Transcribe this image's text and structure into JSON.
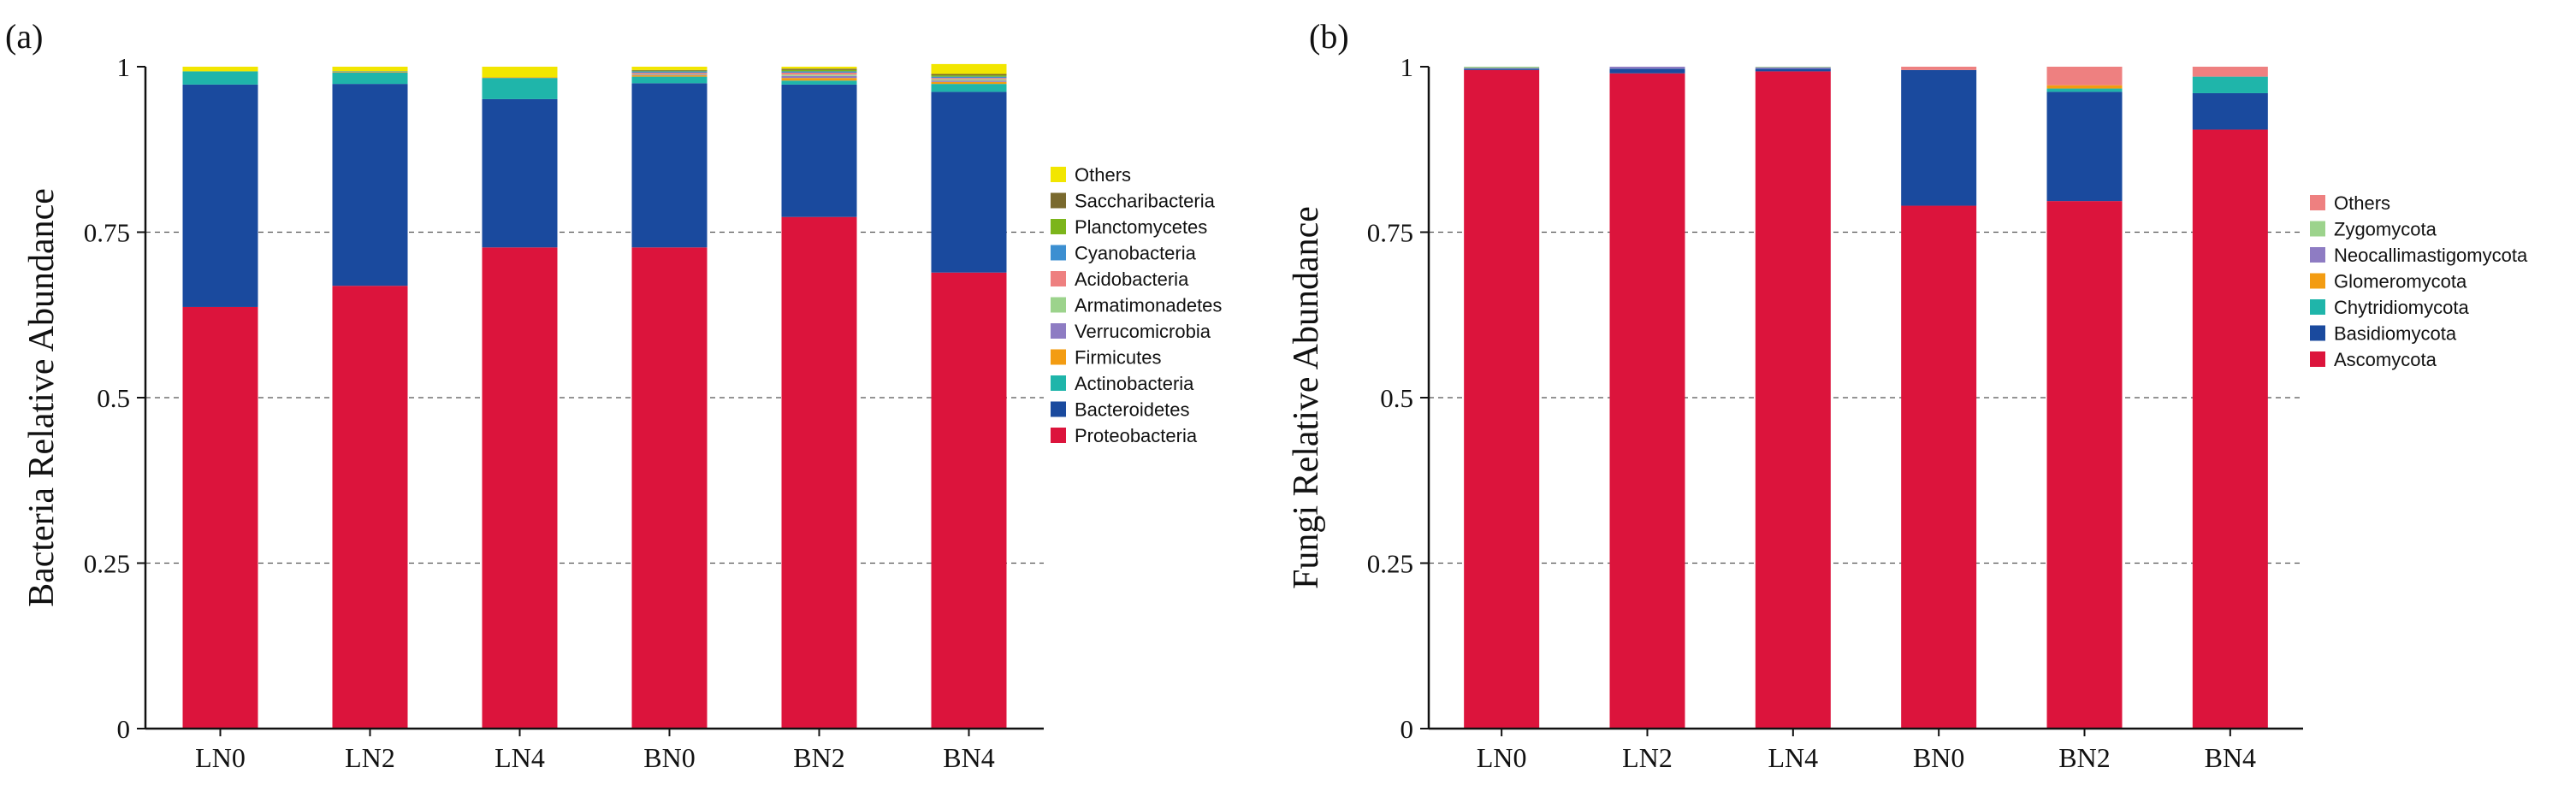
{
  "chart_data": [
    {
      "panel_label": "(a)",
      "type": "bar",
      "stacked": true,
      "title": "",
      "xlabel": "",
      "ylabel": "Bacteria Relative Abundance",
      "ylim": [
        0,
        1
      ],
      "yticks": [
        0,
        0.25,
        0.5,
        0.75,
        1
      ],
      "ytick_labels": [
        "0",
        "0.25",
        "0.5",
        "0.75",
        "1"
      ],
      "grid": "horizontal dashed",
      "legend_position": "right",
      "categories": [
        "LN0",
        "LN2",
        "LN4",
        "BN0",
        "BN2",
        "BN4"
      ],
      "series": [
        {
          "name": "Proteobacteria",
          "color": "#DC143C",
          "values": [
            0.637,
            0.669,
            0.727,
            0.727,
            0.773,
            0.689
          ]
        },
        {
          "name": "Bacteroidetes",
          "color": "#1A4A9E",
          "values": [
            0.336,
            0.305,
            0.224,
            0.248,
            0.2,
            0.273
          ]
        },
        {
          "name": "Actinobacteria",
          "color": "#1FB5AA",
          "values": [
            0.02,
            0.017,
            0.032,
            0.01,
            0.006,
            0.012
          ]
        },
        {
          "name": "Firmicutes",
          "color": "#F39C12",
          "values": [
            0.0,
            0.001,
            0.001,
            0.002,
            0.004,
            0.003
          ]
        },
        {
          "name": "Verrucomicrobia",
          "color": "#8E7CC3",
          "values": [
            0.0,
            0.0,
            0.0,
            0.001,
            0.003,
            0.002
          ]
        },
        {
          "name": "Armatimonadetes",
          "color": "#9CD38C",
          "values": [
            0.0,
            0.0,
            0.0,
            0.001,
            0.002,
            0.002
          ]
        },
        {
          "name": "Acidobacteria",
          "color": "#EE8080",
          "values": [
            0.0,
            0.0,
            0.0,
            0.002,
            0.003,
            0.002
          ]
        },
        {
          "name": "Cyanobacteria",
          "color": "#3C8FD1",
          "values": [
            0.0,
            0.001,
            0.0,
            0.002,
            0.002,
            0.002
          ]
        },
        {
          "name": "Planctomycetes",
          "color": "#7CB51B",
          "values": [
            0.0,
            0.0,
            0.0,
            0.001,
            0.002,
            0.002
          ]
        },
        {
          "name": "Saccharibacteria",
          "color": "#7A6A2E",
          "values": [
            0.0,
            0.0,
            0.0,
            0.001,
            0.002,
            0.002
          ]
        },
        {
          "name": "Others",
          "color": "#F2E600",
          "values": [
            0.007,
            0.007,
            0.016,
            0.005,
            0.003,
            0.015
          ]
        }
      ]
    },
    {
      "panel_label": "(b)",
      "type": "bar",
      "stacked": true,
      "title": "",
      "xlabel": "",
      "ylabel": "Fungi Relative Abundance",
      "ylim": [
        0,
        1
      ],
      "yticks": [
        0,
        0.25,
        0.5,
        0.75,
        1
      ],
      "ytick_labels": [
        "0",
        "0.25",
        "0.5",
        "0.75",
        "1"
      ],
      "grid": "horizontal dashed",
      "legend_position": "right",
      "categories": [
        "LN0",
        "LN2",
        "LN4",
        "BN0",
        "BN2",
        "BN4"
      ],
      "series": [
        {
          "name": "Ascomycota",
          "color": "#DC143C",
          "values": [
            0.995,
            0.99,
            0.993,
            0.79,
            0.797,
            0.905
          ]
        },
        {
          "name": "Basidiomycota",
          "color": "#1A4A9E",
          "values": [
            0.002,
            0.007,
            0.004,
            0.205,
            0.165,
            0.055
          ]
        },
        {
          "name": "Chytridiomycota",
          "color": "#1FB5AA",
          "values": [
            0.0,
            0.0,
            0.0,
            0.0,
            0.005,
            0.025
          ]
        },
        {
          "name": "Glomeromycota",
          "color": "#F39C12",
          "values": [
            0.0,
            0.0,
            0.0,
            0.0,
            0.005,
            0.0
          ]
        },
        {
          "name": "Neocallimastigomycota",
          "color": "#8E7CC3",
          "values": [
            0.001,
            0.003,
            0.002,
            0.0,
            0.0,
            0.0
          ]
        },
        {
          "name": "Zygomycota",
          "color": "#9CD38C",
          "values": [
            0.002,
            0.0,
            0.001,
            0.0,
            0.0,
            0.0
          ]
        },
        {
          "name": "Others",
          "color": "#EE8080",
          "values": [
            0.0,
            0.0,
            0.0,
            0.005,
            0.028,
            0.015
          ]
        }
      ]
    }
  ]
}
